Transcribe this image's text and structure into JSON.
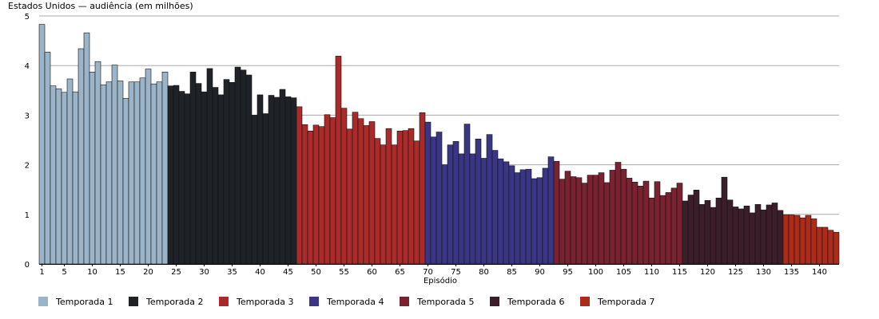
{
  "chart_data": {
    "type": "bar",
    "title": "Estados Unidos — audiência (em milhões)",
    "xlabel": "Episódio",
    "ylabel": "",
    "ylim": [
      0,
      5
    ],
    "yticks": [
      0,
      1,
      2,
      3,
      4,
      5
    ],
    "xticks": [
      1,
      5,
      10,
      15,
      20,
      25,
      30,
      35,
      40,
      45,
      50,
      55,
      60,
      65,
      70,
      75,
      80,
      85,
      90,
      95,
      100,
      105,
      110,
      115,
      120,
      125,
      130,
      135,
      140
    ],
    "grid": true,
    "legend_position": "bottom",
    "series": [
      {
        "name": "Temporada 1",
        "color": "#9cb4c8",
        "start_episode": 1,
        "values": [
          4.83,
          4.27,
          3.59,
          3.53,
          3.46,
          3.73,
          3.47,
          4.34,
          4.66,
          3.87,
          4.08,
          3.61,
          3.67,
          4.01,
          3.69,
          3.34,
          3.67,
          3.67,
          3.75,
          3.93,
          3.63,
          3.67,
          3.87
        ]
      },
      {
        "name": "Temporada 2",
        "color": "#1f2327",
        "start_episode": 24,
        "values": [
          3.59,
          3.6,
          3.48,
          3.43,
          3.87,
          3.64,
          3.47,
          3.94,
          3.56,
          3.41,
          3.72,
          3.66,
          3.97,
          3.91,
          3.81,
          3.0,
          3.41,
          3.03,
          3.4,
          3.36,
          3.52,
          3.37,
          3.35
        ]
      },
      {
        "name": "Temporada 3",
        "color": "#ab2a2a",
        "start_episode": 47,
        "values": [
          3.17,
          2.81,
          2.68,
          2.8,
          2.77,
          3.01,
          2.95,
          4.19,
          3.14,
          2.72,
          3.06,
          2.93,
          2.79,
          2.87,
          2.53,
          2.4,
          2.73,
          2.4,
          2.68,
          2.69,
          2.73,
          2.48,
          3.05
        ]
      },
      {
        "name": "Temporada 4",
        "color": "#3b3585",
        "start_episode": 70,
        "values": [
          2.86,
          2.56,
          2.66,
          2.0,
          2.4,
          2.47,
          2.22,
          2.82,
          2.22,
          2.52,
          2.13,
          2.61,
          2.29,
          2.12,
          2.06,
          1.98,
          1.84,
          1.9,
          1.91,
          1.72,
          1.74,
          1.93,
          2.16
        ]
      },
      {
        "name": "Temporada 5",
        "color": "#7a2230",
        "start_episode": 93,
        "values": [
          2.07,
          1.71,
          1.87,
          1.76,
          1.74,
          1.63,
          1.79,
          1.79,
          1.84,
          1.64,
          1.89,
          2.05,
          1.91,
          1.73,
          1.65,
          1.57,
          1.67,
          1.33,
          1.66,
          1.38,
          1.44,
          1.53,
          1.63
        ]
      },
      {
        "name": "Temporada 6",
        "color": "#3b1e2a",
        "start_episode": 116,
        "values": [
          1.27,
          1.39,
          1.49,
          1.2,
          1.28,
          1.14,
          1.33,
          1.75,
          1.29,
          1.15,
          1.11,
          1.17,
          1.03,
          1.2,
          1.09,
          1.19,
          1.23,
          1.08
        ]
      },
      {
        "name": "Temporada 7",
        "color": "#ad2b1b",
        "start_episode": 134,
        "values": [
          0.99,
          0.99,
          0.98,
          0.93,
          0.98,
          0.91,
          0.74,
          0.74,
          0.68,
          0.64
        ]
      }
    ]
  }
}
